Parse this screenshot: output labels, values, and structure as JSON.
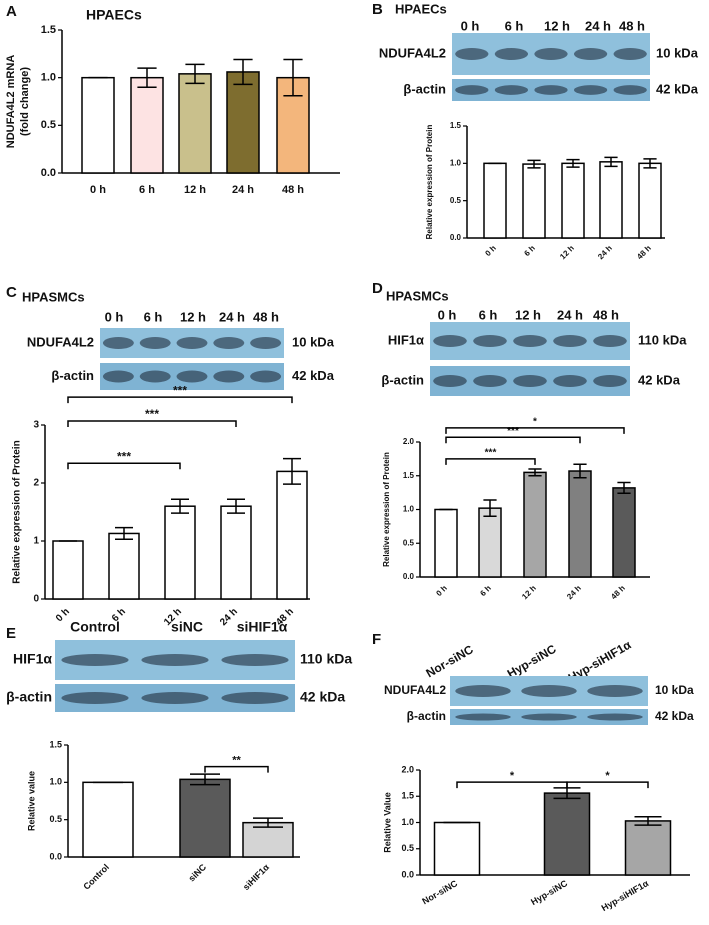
{
  "chart_data": [
    {
      "type": "bar",
      "panel": "A",
      "title": "HPAECs",
      "ylabel": [
        "NDUFA4L2 mRNA",
        "(fold change)"
      ],
      "categories": [
        "0 h",
        "6 h",
        "12 h",
        "24 h",
        "48 h"
      ],
      "values": [
        1.0,
        1.0,
        1.04,
        1.06,
        1.0
      ],
      "errors": [
        0,
        0.1,
        0.1,
        0.13,
        0.19
      ],
      "colors": [
        "#ffffff",
        "#fde3e3",
        "#c9c08c",
        "#7e6d2f",
        "#f3b67c"
      ],
      "ylim": [
        0,
        1.5
      ],
      "yticks": [
        {
          "value": 0,
          "label": "0.0"
        },
        0.5,
        {
          "value": 1,
          "label": "1.0"
        },
        1.5
      ]
    },
    {
      "type": "bar",
      "panel": "B",
      "title": "HPAECs",
      "ylabel": [
        "Relative expression of Protein"
      ],
      "blot": {
        "lanes": [
          "0 h",
          "6 h",
          "12 h",
          "24 h",
          "48 h"
        ],
        "rows": [
          {
            "label": "NDUFA4L2",
            "size": "10 kDa"
          },
          {
            "label": "β-actin",
            "size": "42 kDa"
          }
        ]
      },
      "categories": [
        "0 h",
        "6 h",
        "12 h",
        "24 h",
        "48 h"
      ],
      "values": [
        1.0,
        0.99,
        1.0,
        1.02,
        1.0
      ],
      "errors": [
        0,
        0.05,
        0.05,
        0.06,
        0.06
      ],
      "colors": [
        "#ffffff",
        "#ffffff",
        "#ffffff",
        "#ffffff",
        "#ffffff"
      ],
      "ylim": [
        0,
        1.5
      ],
      "yticks": [
        {
          "value": 0,
          "label": "0.0"
        },
        0.5,
        {
          "value": 1,
          "label": "1.0"
        },
        1.5
      ]
    },
    {
      "type": "bar",
      "panel": "C",
      "title": "HPASMCs",
      "ylabel": [
        "Relative expression of Protein"
      ],
      "blot": {
        "lanes": [
          "0 h",
          "6 h",
          "12 h",
          "24 h",
          "48 h"
        ],
        "rows": [
          {
            "label": "NDUFA4L2",
            "size": "10 kDa"
          },
          {
            "label": "β-actin",
            "size": "42 kDa"
          }
        ]
      },
      "categories": [
        "0 h",
        "6 h",
        "12 h",
        "24 h",
        "48 h"
      ],
      "values": [
        1.0,
        1.13,
        1.6,
        1.6,
        2.2
      ],
      "errors": [
        0,
        0.1,
        0.12,
        0.12,
        0.22
      ],
      "colors": [
        "#ffffff",
        "#ffffff",
        "#ffffff",
        "#ffffff",
        "#ffffff"
      ],
      "ylim": [
        0,
        3
      ],
      "yticks": [
        0,
        1,
        2,
        3
      ],
      "annotations": [
        {
          "from": "0 h",
          "to": "12 h",
          "y": 2.34,
          "label": "***"
        },
        {
          "from": "0 h",
          "to": "24 h",
          "y": 3.07,
          "label": "***"
        },
        {
          "from": "0 h",
          "to": "48 h",
          "y": 3.48,
          "label": "***"
        }
      ]
    },
    {
      "type": "bar",
      "panel": "D",
      "title": "HPASMCs",
      "ylabel": [
        "Relative expression of Protein"
      ],
      "blot": {
        "lanes": [
          "0 h",
          "6 h",
          "12 h",
          "24 h",
          "48 h"
        ],
        "rows": [
          {
            "label": "HIF1α",
            "size": "110 kDa"
          },
          {
            "label": "β-actin",
            "size": "42 kDa"
          }
        ]
      },
      "categories": [
        "0 h",
        "6 h",
        "12 h",
        "24 h",
        "48 h"
      ],
      "values": [
        1.0,
        1.02,
        1.55,
        1.57,
        1.32
      ],
      "errors": [
        0,
        0.12,
        0.05,
        0.1,
        0.08
      ],
      "colors": [
        "#ffffff",
        "#d9d9d9",
        "#a6a6a6",
        "#808080",
        "#5a5a5a"
      ],
      "ylim": [
        0,
        2
      ],
      "yticks": [
        {
          "value": 0,
          "label": "0.0"
        },
        0.5,
        {
          "value": 1,
          "label": "1.0"
        },
        1.5,
        {
          "value": 2,
          "label": "2.0"
        }
      ],
      "annotations": [
        {
          "from": "0 h",
          "to": "12 h",
          "y": 1.75,
          "label": "***"
        },
        {
          "from": "0 h",
          "to": "24 h",
          "y": 2.07,
          "label": "***"
        },
        {
          "from": "0 h",
          "to": "48 h",
          "y": 2.21,
          "label": "*"
        }
      ]
    },
    {
      "type": "bar",
      "panel": "E",
      "ylabel": [
        "Relative value"
      ],
      "blot": {
        "lanes": [
          "Control",
          "siNC",
          "siHIF1α"
        ],
        "rows": [
          {
            "label": "HIF1α",
            "size": "110 kDa"
          },
          {
            "label": "β-actin",
            "size": "42 kDa"
          }
        ]
      },
      "categories": [
        "Control",
        "siNC",
        "siHIF1α"
      ],
      "values": [
        1.0,
        1.04,
        0.46
      ],
      "errors": [
        0,
        0.07,
        0.06
      ],
      "colors": [
        "#ffffff",
        "#5a5a5a",
        "#d4d4d4"
      ],
      "ylim": [
        0,
        1.5
      ],
      "yticks": [
        {
          "value": 0,
          "label": "0.0"
        },
        0.5,
        {
          "value": 1,
          "label": "1.0"
        },
        1.5
      ],
      "annotations": [
        {
          "from": "siNC",
          "to": "siHIF1α",
          "y": 1.21,
          "label": "**"
        }
      ]
    },
    {
      "type": "bar",
      "panel": "F",
      "ylabel": [
        "Relative Value"
      ],
      "blot": {
        "lanes": [
          "Nor-siNC",
          "Hyp-siNC",
          "Hyp-siHIF1α"
        ],
        "rows": [
          {
            "label": "NDUFA4L2",
            "size": "10 kDa"
          },
          {
            "label": "β-actin",
            "size": "42 kDa"
          }
        ]
      },
      "categories": [
        "Nor-siNC",
        "Hyp-siNC",
        "Hyp-siHIF1α"
      ],
      "values": [
        1.0,
        1.56,
        1.03
      ],
      "errors": [
        0,
        0.1,
        0.08
      ],
      "colors": [
        "#ffffff",
        "#5a5a5a",
        "#a6a6a6"
      ],
      "ylim": [
        0,
        2
      ],
      "yticks": [
        {
          "value": 0,
          "label": "0.0"
        },
        0.5,
        {
          "value": 1,
          "label": "1.0"
        },
        1.5,
        {
          "value": 2,
          "label": "2.0"
        }
      ],
      "annotations": [
        {
          "from": "Nor-siNC",
          "to": "Hyp-siNC",
          "y": 1.77,
          "label": "*"
        },
        {
          "from": "Hyp-siNC",
          "to": "Hyp-siHIF1α",
          "y": 1.77,
          "label": "*"
        }
      ]
    }
  ]
}
